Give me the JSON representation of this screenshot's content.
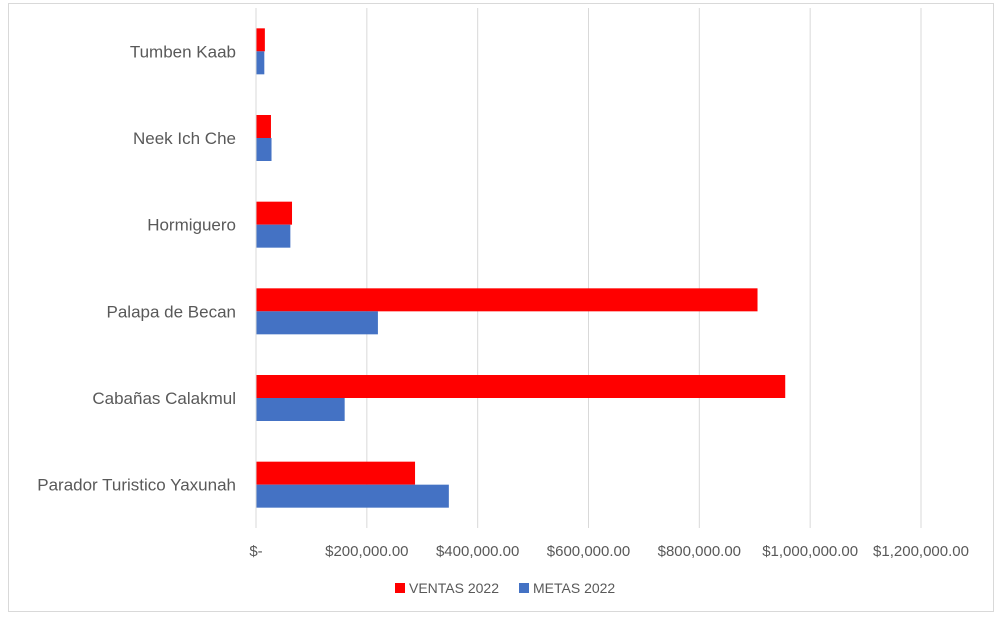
{
  "chart_data": {
    "type": "bar",
    "orientation": "horizontal",
    "categories": [
      "Parador Turistico Yaxunah",
      "Cabañas Calakmul",
      "Palapa de Becan",
      "Hormiguero",
      "Neek Ich Che",
      "Tumben Kaab"
    ],
    "series": [
      {
        "name": "VENTAS 2022",
        "color": "#ff0000",
        "values": [
          287000,
          955000,
          905000,
          65000,
          27000,
          16000
        ]
      },
      {
        "name": "METAS 2022",
        "color": "#4472c4",
        "values": [
          348000,
          160000,
          220000,
          62000,
          28000,
          15000
        ]
      }
    ],
    "xlim": [
      0,
      1200000
    ],
    "tick_values": [
      0,
      200000,
      400000,
      600000,
      800000,
      1000000,
      1200000
    ],
    "tick_labels": [
      "$-",
      "$200,000.00",
      "$400,000.00",
      "$600,000.00",
      "$800,000.00",
      "$1,000,000.00",
      "$1,200,000.00"
    ],
    "title": "",
    "xlabel": "",
    "ylabel": "",
    "grid": "vertical",
    "legend": "bottom"
  }
}
